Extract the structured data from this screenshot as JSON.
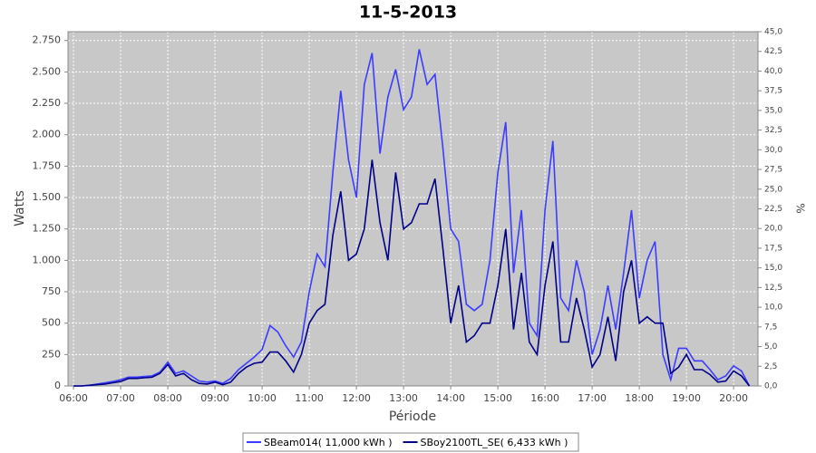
{
  "chart_data": {
    "type": "line",
    "title": "11-5-2013",
    "x_label": "Période",
    "y_label": "Watts",
    "y2_label": "%",
    "x": [
      "06:00",
      "06:10",
      "06:20",
      "06:30",
      "06:40",
      "06:50",
      "07:00",
      "07:10",
      "07:20",
      "07:30",
      "07:40",
      "07:50",
      "08:00",
      "08:10",
      "08:20",
      "08:30",
      "08:40",
      "08:50",
      "09:00",
      "09:10",
      "09:20",
      "09:30",
      "09:40",
      "09:50",
      "10:00",
      "10:10",
      "10:20",
      "10:30",
      "10:40",
      "10:50",
      "11:00",
      "11:10",
      "11:20",
      "11:30",
      "11:40",
      "11:50",
      "12:00",
      "12:10",
      "12:20",
      "12:30",
      "12:40",
      "12:50",
      "13:00",
      "13:10",
      "13:20",
      "13:30",
      "13:40",
      "13:50",
      "14:00",
      "14:10",
      "14:20",
      "14:30",
      "14:40",
      "14:50",
      "15:00",
      "15:10",
      "15:20",
      "15:30",
      "15:40",
      "15:50",
      "16:00",
      "16:10",
      "16:20",
      "16:30",
      "16:40",
      "16:50",
      "17:00",
      "17:10",
      "17:20",
      "17:30",
      "17:40",
      "17:50",
      "18:00",
      "18:10",
      "18:20",
      "18:30",
      "18:40",
      "18:50",
      "19:00",
      "19:10",
      "19:20",
      "19:30",
      "19:40",
      "19:50",
      "20:00",
      "20:10",
      "20:20"
    ],
    "series": [
      {
        "name": "SBeam014( 11,000 kWh )",
        "color": "#3c3cff",
        "values": [
          0,
          0,
          5,
          15,
          25,
          35,
          50,
          70,
          70,
          75,
          80,
          110,
          190,
          100,
          120,
          80,
          40,
          30,
          40,
          20,
          60,
          130,
          180,
          230,
          290,
          480,
          430,
          320,
          230,
          350,
          750,
          1050,
          950,
          1700,
          2350,
          1800,
          1500,
          2400,
          2650,
          1850,
          2300,
          2520,
          2200,
          2300,
          2680,
          2400,
          2480,
          1900,
          1250,
          1150,
          650,
          600,
          650,
          1000,
          1700,
          2100,
          900,
          1400,
          500,
          400,
          1400,
          1950,
          700,
          600,
          1000,
          750,
          250,
          450,
          800,
          450,
          900,
          1400,
          700,
          1000,
          1150,
          250,
          50,
          300,
          300,
          200,
          200,
          130,
          50,
          80,
          160,
          120,
          0
        ]
      },
      {
        "name": "SBoy2100TL_SE( 6,433 kWh )",
        "color": "#00008b",
        "values": [
          0,
          0,
          5,
          10,
          15,
          25,
          35,
          60,
          60,
          65,
          70,
          100,
          170,
          80,
          100,
          50,
          20,
          15,
          30,
          10,
          30,
          100,
          150,
          180,
          190,
          270,
          270,
          200,
          110,
          250,
          500,
          600,
          650,
          1200,
          1550,
          1000,
          1050,
          1250,
          1800,
          1300,
          1000,
          1700,
          1250,
          1300,
          1450,
          1450,
          1650,
          1100,
          500,
          800,
          350,
          400,
          500,
          500,
          800,
          1250,
          450,
          900,
          350,
          250,
          800,
          1150,
          350,
          350,
          700,
          450,
          150,
          250,
          550,
          200,
          750,
          1000,
          500,
          550,
          500,
          500,
          100,
          150,
          250,
          130,
          130,
          90,
          30,
          40,
          120,
          80,
          0
        ]
      }
    ],
    "xlim": [
      "05:53",
      "20:31"
    ],
    "xticks": [
      "06:00",
      "07:00",
      "08:00",
      "09:00",
      "10:00",
      "11:00",
      "12:00",
      "13:00",
      "14:00",
      "15:00",
      "16:00",
      "17:00",
      "18:00",
      "19:00",
      "20:00"
    ],
    "ylim": [
      0,
      2820
    ],
    "yticks": [
      0,
      250,
      500,
      750,
      {
        "value": 1000,
        "label": "1.000"
      },
      {
        "value": 1250,
        "label": "1.250"
      },
      {
        "value": 1500,
        "label": "1.500"
      },
      {
        "value": 1750,
        "label": "1.750"
      },
      {
        "value": 2000,
        "label": "2.000"
      },
      {
        "value": 2250,
        "label": "2.250"
      },
      {
        "value": 2500,
        "label": "2.500"
      },
      {
        "value": 2750,
        "label": "2.750"
      }
    ],
    "y2lim": [
      0,
      45
    ],
    "y2ticks": [
      {
        "value": 0,
        "label": "0,0"
      },
      {
        "value": 2.5,
        "label": "2,5"
      },
      {
        "value": 5,
        "label": "5,0"
      },
      {
        "value": 7.5,
        "label": "7,5"
      },
      {
        "value": 10,
        "label": "10,0"
      },
      {
        "value": 12.5,
        "label": "12,5"
      },
      {
        "value": 15,
        "label": "15,0"
      },
      {
        "value": 17.5,
        "label": "17,5"
      },
      {
        "value": 20,
        "label": "20,0"
      },
      {
        "value": 22.5,
        "label": "22,5"
      },
      {
        "value": 25,
        "label": "25,0"
      },
      {
        "value": 27.5,
        "label": "27,5"
      },
      {
        "value": 30,
        "label": "30,0"
      },
      {
        "value": 32.5,
        "label": "32,5"
      },
      {
        "value": 35,
        "label": "35,0"
      },
      {
        "value": 37.5,
        "label": "37,5"
      },
      {
        "value": 40,
        "label": "40,0"
      },
      {
        "value": 42.5,
        "label": "42,5"
      },
      {
        "value": 45,
        "label": "45,0"
      }
    ],
    "grid": true
  }
}
